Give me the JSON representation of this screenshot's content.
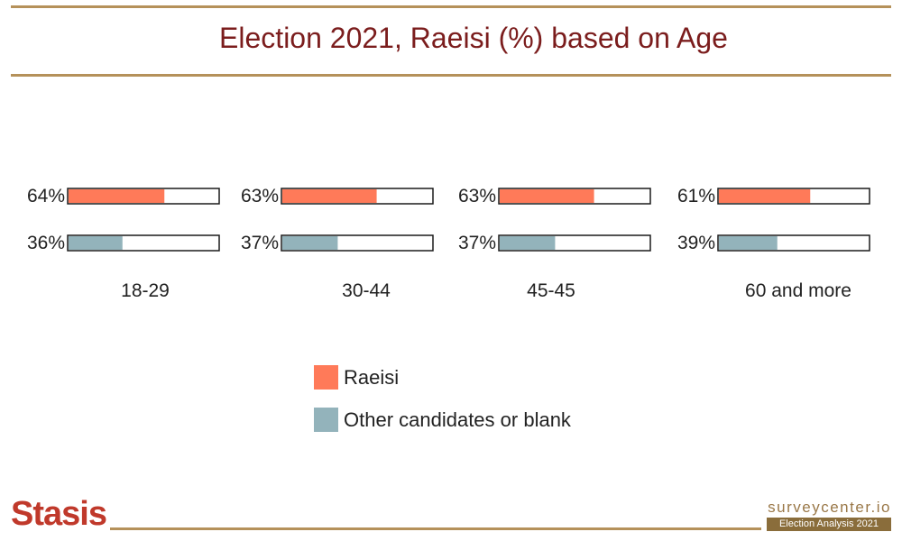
{
  "title": "Election 2021, Raeisi (%) based on Age",
  "chart_data": {
    "type": "bar",
    "title": "Election 2021, Raeisi (%) based on Age",
    "categories": [
      "18-29",
      "30-44",
      "45-45",
      "60 and more"
    ],
    "series": [
      {
        "name": "Raeisi",
        "values": [
          64,
          63,
          63,
          61
        ],
        "color": "#ff7a59"
      },
      {
        "name": "Other candidates or blank",
        "values": [
          36,
          37,
          37,
          39
        ],
        "color": "#93b3bb"
      }
    ],
    "value_suffix": "%",
    "ylim": [
      0,
      100
    ],
    "grid": false,
    "legend_position": "bottom-center"
  },
  "legend": [
    "Raeisi",
    "Other candidates or blank"
  ],
  "footer": {
    "logo_text": "Stasis",
    "site": "surveycenter.io",
    "tag": "Election Analysis 2021"
  },
  "colors": {
    "title": "#7b1d1d",
    "rule": "#b5915a",
    "raeisi": "#ff7a59",
    "other": "#93b3bb"
  }
}
